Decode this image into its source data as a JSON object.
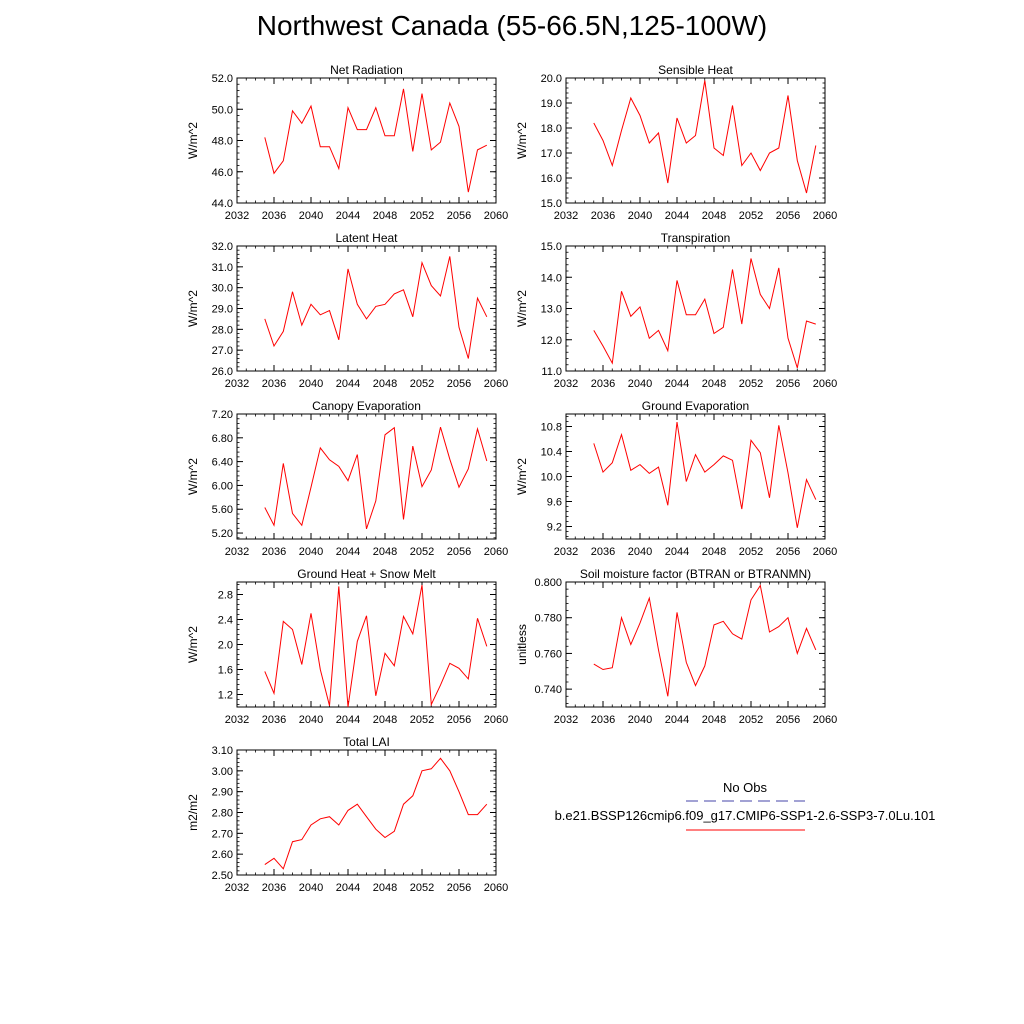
{
  "title": "Northwest Canada (55-66.5N,125-100W)",
  "series_color": "#ff0000",
  "obs_color": "#4444aa",
  "legend": {
    "obs_label": "No Obs",
    "model_label": "b.e21.BSSP126cmip6.f09_g17.CMIP6-SSP1-2.6-SSP3-7.0Lu.101"
  },
  "chart_data": [
    {
      "type": "line",
      "title": "Net Radiation",
      "ylabel": "W/m^2",
      "xlim": [
        2032,
        2060
      ],
      "ylim": [
        44,
        52
      ],
      "yticks": [
        44,
        46,
        48,
        50,
        52
      ],
      "ytick_labels": [
        "44.0",
        "46.0",
        "48.0",
        "50.0",
        "52.0"
      ],
      "xticks": [
        2032,
        2036,
        2040,
        2044,
        2048,
        2052,
        2056,
        2060
      ],
      "x": [
        2035,
        2036,
        2037,
        2038,
        2039,
        2040,
        2041,
        2042,
        2043,
        2044,
        2045,
        2046,
        2047,
        2048,
        2049,
        2050,
        2051,
        2052,
        2053,
        2054,
        2055,
        2056,
        2057,
        2058,
        2059
      ],
      "values": [
        48.2,
        45.9,
        46.7,
        49.9,
        49.1,
        50.2,
        47.6,
        47.6,
        46.2,
        50.1,
        48.7,
        48.7,
        50.1,
        48.3,
        48.3,
        51.3,
        47.3,
        51.0,
        47.4,
        47.9,
        50.4,
        48.9,
        44.7,
        47.4,
        47.7
      ]
    },
    {
      "type": "line",
      "title": "Sensible Heat",
      "ylabel": "W/m^2",
      "xlim": [
        2032,
        2060
      ],
      "ylim": [
        15,
        20
      ],
      "yticks": [
        15,
        16,
        17,
        18,
        19,
        20
      ],
      "ytick_labels": [
        "15.0",
        "16.0",
        "17.0",
        "18.0",
        "19.0",
        "20.0"
      ],
      "xticks": [
        2032,
        2036,
        2040,
        2044,
        2048,
        2052,
        2056,
        2060
      ],
      "x": [
        2035,
        2036,
        2037,
        2038,
        2039,
        2040,
        2041,
        2042,
        2043,
        2044,
        2045,
        2046,
        2047,
        2048,
        2049,
        2050,
        2051,
        2052,
        2053,
        2054,
        2055,
        2056,
        2057,
        2058,
        2059
      ],
      "values": [
        18.2,
        17.5,
        16.5,
        17.9,
        19.2,
        18.5,
        17.4,
        17.8,
        15.8,
        18.4,
        17.4,
        17.7,
        19.9,
        17.2,
        16.9,
        18.9,
        16.5,
        17.0,
        16.3,
        17.0,
        17.2,
        19.3,
        16.7,
        15.4,
        17.3
      ]
    },
    {
      "type": "line",
      "title": "Latent Heat",
      "ylabel": "W/m^2",
      "xlim": [
        2032,
        2060
      ],
      "ylim": [
        26,
        32
      ],
      "yticks": [
        26,
        27,
        28,
        29,
        30,
        31,
        32
      ],
      "ytick_labels": [
        "26.0",
        "27.0",
        "28.0",
        "29.0",
        "30.0",
        "31.0",
        "32.0"
      ],
      "xticks": [
        2032,
        2036,
        2040,
        2044,
        2048,
        2052,
        2056,
        2060
      ],
      "x": [
        2035,
        2036,
        2037,
        2038,
        2039,
        2040,
        2041,
        2042,
        2043,
        2044,
        2045,
        2046,
        2047,
        2048,
        2049,
        2050,
        2051,
        2052,
        2053,
        2054,
        2055,
        2056,
        2057,
        2058,
        2059
      ],
      "values": [
        28.5,
        27.2,
        27.9,
        29.8,
        28.2,
        29.2,
        28.7,
        28.9,
        27.5,
        30.9,
        29.2,
        28.5,
        29.1,
        29.2,
        29.7,
        29.9,
        28.6,
        31.2,
        30.1,
        29.6,
        31.5,
        28.1,
        26.6,
        29.5,
        28.6
      ]
    },
    {
      "type": "line",
      "title": "Transpiration",
      "ylabel": "W/m^2",
      "xlim": [
        2032,
        2060
      ],
      "ylim": [
        11,
        15
      ],
      "yticks": [
        11,
        12,
        13,
        14,
        15
      ],
      "ytick_labels": [
        "11.0",
        "12.0",
        "13.0",
        "14.0",
        "15.0"
      ],
      "xticks": [
        2032,
        2036,
        2040,
        2044,
        2048,
        2052,
        2056,
        2060
      ],
      "x": [
        2035,
        2036,
        2037,
        2038,
        2039,
        2040,
        2041,
        2042,
        2043,
        2044,
        2045,
        2046,
        2047,
        2048,
        2049,
        2050,
        2051,
        2052,
        2053,
        2054,
        2055,
        2056,
        2057,
        2058,
        2059
      ],
      "values": [
        12.3,
        11.8,
        11.25,
        13.55,
        12.75,
        13.05,
        12.05,
        12.3,
        11.65,
        13.9,
        12.8,
        12.8,
        13.3,
        12.2,
        12.4,
        14.25,
        12.5,
        14.6,
        13.45,
        13.0,
        14.3,
        12.05,
        11.1,
        12.6,
        12.5
      ]
    },
    {
      "type": "line",
      "title": "Canopy Evaporation",
      "ylabel": "W/m^2",
      "xlim": [
        2032,
        2060
      ],
      "ylim": [
        5.1,
        7.2
      ],
      "yticks": [
        5.2,
        5.6,
        6.0,
        6.4,
        6.8,
        7.2
      ],
      "ytick_labels": [
        "5.20",
        "5.60",
        "6.00",
        "6.40",
        "6.80",
        "7.20"
      ],
      "xticks": [
        2032,
        2036,
        2040,
        2044,
        2048,
        2052,
        2056,
        2060
      ],
      "x": [
        2035,
        2036,
        2037,
        2038,
        2039,
        2040,
        2041,
        2042,
        2043,
        2044,
        2045,
        2046,
        2047,
        2048,
        2049,
        2050,
        2051,
        2052,
        2053,
        2054,
        2055,
        2056,
        2057,
        2058,
        2059
      ],
      "values": [
        5.63,
        5.33,
        6.37,
        5.53,
        5.33,
        5.97,
        6.63,
        6.43,
        6.32,
        6.08,
        6.52,
        5.27,
        5.74,
        6.85,
        6.97,
        5.43,
        6.66,
        5.98,
        6.26,
        6.98,
        6.44,
        5.97,
        6.28,
        6.95,
        6.41
      ]
    },
    {
      "type": "line",
      "title": "Ground Evaporation",
      "ylabel": "W/m^2",
      "xlim": [
        2032,
        2060
      ],
      "ylim": [
        9.0,
        11.0
      ],
      "yticks": [
        9.2,
        9.6,
        10.0,
        10.4,
        10.8
      ],
      "ytick_labels": [
        "9.2",
        "9.6",
        "10.0",
        "10.4",
        "10.8"
      ],
      "xticks": [
        2032,
        2036,
        2040,
        2044,
        2048,
        2052,
        2056,
        2060
      ],
      "x": [
        2035,
        2036,
        2037,
        2038,
        2039,
        2040,
        2041,
        2042,
        2043,
        2044,
        2045,
        2046,
        2047,
        2048,
        2049,
        2050,
        2051,
        2052,
        2053,
        2054,
        2055,
        2056,
        2057,
        2058,
        2059
      ],
      "values": [
        10.53,
        10.07,
        10.22,
        10.67,
        10.1,
        10.19,
        10.05,
        10.15,
        9.54,
        10.87,
        9.92,
        10.35,
        10.07,
        10.19,
        10.33,
        10.26,
        9.48,
        10.58,
        10.38,
        9.66,
        10.82,
        10.06,
        9.18,
        9.95,
        9.63
      ]
    },
    {
      "type": "line",
      "title": "Ground Heat + Snow Melt",
      "ylabel": "W/m^2",
      "xlim": [
        2032,
        2060
      ],
      "ylim": [
        1.0,
        3.0
      ],
      "yticks": [
        1.2,
        1.6,
        2.0,
        2.4,
        2.8
      ],
      "ytick_labels": [
        "1.2",
        "1.6",
        "2.0",
        "2.4",
        "2.8"
      ],
      "xticks": [
        2032,
        2036,
        2040,
        2044,
        2048,
        2052,
        2056,
        2060
      ],
      "x": [
        2035,
        2036,
        2037,
        2038,
        2039,
        2040,
        2041,
        2042,
        2043,
        2044,
        2045,
        2046,
        2047,
        2048,
        2049,
        2050,
        2051,
        2052,
        2053,
        2054,
        2055,
        2056,
        2057,
        2058,
        2059
      ],
      "values": [
        1.57,
        1.22,
        2.37,
        2.24,
        1.68,
        2.5,
        1.6,
        1.02,
        2.93,
        1.0,
        2.05,
        2.46,
        1.18,
        1.86,
        1.66,
        2.45,
        2.17,
        2.95,
        1.04,
        1.35,
        1.7,
        1.62,
        1.45,
        2.42,
        1.97
      ]
    },
    {
      "type": "line",
      "title": "Soil moisture factor (BTRAN or BTRANMN)",
      "ylabel": "unitless",
      "xlim": [
        2032,
        2060
      ],
      "ylim": [
        0.73,
        0.8
      ],
      "yticks": [
        0.74,
        0.76,
        0.78,
        0.8
      ],
      "ytick_labels": [
        "0.740",
        "0.760",
        "0.780",
        "0.800"
      ],
      "xticks": [
        2032,
        2036,
        2040,
        2044,
        2048,
        2052,
        2056,
        2060
      ],
      "x": [
        2035,
        2036,
        2037,
        2038,
        2039,
        2040,
        2041,
        2042,
        2043,
        2044,
        2045,
        2046,
        2047,
        2048,
        2049,
        2050,
        2051,
        2052,
        2053,
        2054,
        2055,
        2056,
        2057,
        2058,
        2059
      ],
      "values": [
        0.754,
        0.751,
        0.752,
        0.78,
        0.765,
        0.777,
        0.791,
        0.762,
        0.736,
        0.783,
        0.755,
        0.742,
        0.753,
        0.776,
        0.778,
        0.771,
        0.768,
        0.79,
        0.798,
        0.772,
        0.775,
        0.78,
        0.76,
        0.774,
        0.762
      ]
    },
    {
      "type": "line",
      "title": "Total LAI",
      "ylabel": "m2/m2",
      "xlim": [
        2032,
        2060
      ],
      "ylim": [
        2.5,
        3.1
      ],
      "yticks": [
        2.5,
        2.6,
        2.7,
        2.8,
        2.9,
        3.0,
        3.1
      ],
      "ytick_labels": [
        "2.50",
        "2.60",
        "2.70",
        "2.80",
        "2.90",
        "3.00",
        "3.10"
      ],
      "xticks": [
        2032,
        2036,
        2040,
        2044,
        2048,
        2052,
        2056,
        2060
      ],
      "x": [
        2035,
        2036,
        2037,
        2038,
        2039,
        2040,
        2041,
        2042,
        2043,
        2044,
        2045,
        2046,
        2047,
        2048,
        2049,
        2050,
        2051,
        2052,
        2053,
        2054,
        2055,
        2056,
        2057,
        2058,
        2059
      ],
      "values": [
        2.55,
        2.58,
        2.53,
        2.66,
        2.67,
        2.74,
        2.77,
        2.78,
        2.74,
        2.81,
        2.84,
        2.78,
        2.72,
        2.68,
        2.71,
        2.84,
        2.88,
        3.0,
        3.01,
        3.06,
        3.0,
        2.9,
        2.79,
        2.79,
        2.84
      ]
    }
  ]
}
